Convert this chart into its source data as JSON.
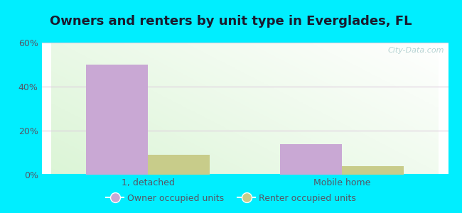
{
  "title": "Owners and renters by unit type in Everglades, FL",
  "categories": [
    "1, detached",
    "Mobile home"
  ],
  "owner_values": [
    50,
    14
  ],
  "renter_values": [
    9,
    4
  ],
  "owner_color": "#c9a8d4",
  "renter_color": "#c8cc8a",
  "ylim": [
    0,
    60
  ],
  "yticks": [
    0,
    20,
    40,
    60
  ],
  "ytick_labels": [
    "0%",
    "20%",
    "40%",
    "60%"
  ],
  "bar_width": 0.32,
  "outer_bg": "#00eeff",
  "legend_owner": "Owner occupied units",
  "legend_renter": "Renter occupied units",
  "watermark": "City-Data.com",
  "title_fontsize": 13,
  "axis_label_fontsize": 9,
  "legend_fontsize": 9,
  "title_color": "#1a1a2e",
  "tick_color": "#555566",
  "grid_color": "#ddccdd",
  "watermark_color": "#aacccc"
}
